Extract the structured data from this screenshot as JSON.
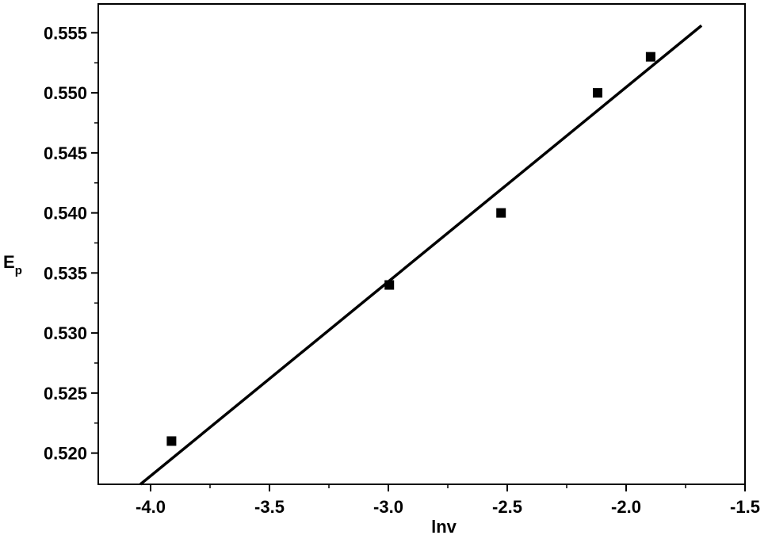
{
  "chart_data": {
    "type": "scatter",
    "x_label": "lnv",
    "y_label": {
      "text": "E",
      "subscript": "p"
    },
    "x": [
      -3.912,
      -2.996,
      -2.526,
      -2.12,
      -1.897
    ],
    "series": [
      {
        "color": "#000000",
        "values": [
          0.521,
          0.534,
          0.54,
          0.55,
          0.553
        ]
      }
    ],
    "fit": {
      "color": "#000000",
      "x": [
        -4.043,
        -1.683
      ],
      "values": [
        0.5174,
        0.5556
      ]
    },
    "xlim": [
      -4.22,
      -1.5
    ],
    "ylim": [
      0.5174,
      0.5574
    ],
    "xticks": [
      {
        "value": -4,
        "label": "-4.0"
      },
      -3.5,
      {
        "value": -3,
        "label": "-3.0"
      },
      -2.5,
      {
        "value": -2,
        "label": "-2.0"
      },
      -1.5
    ],
    "yticks": [
      {
        "value": 0.52,
        "label": "0.520"
      },
      0.525,
      {
        "value": 0.53,
        "label": "0.530"
      },
      0.535,
      {
        "value": 0.54,
        "label": "0.540"
      },
      0.545,
      {
        "value": 0.55,
        "label": "0.550"
      },
      0.555
    ],
    "grid": false
  }
}
